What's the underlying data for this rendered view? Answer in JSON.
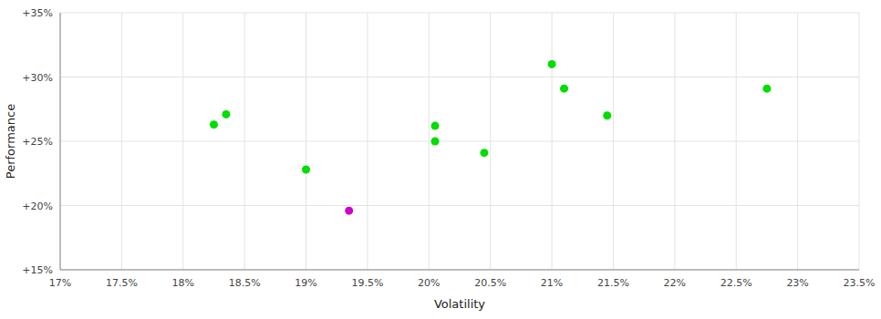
{
  "chart_data": {
    "type": "scatter",
    "xlabel": "Volatility",
    "ylabel": "Performance",
    "xlim": [
      0.17,
      0.235
    ],
    "ylim": [
      0.15,
      0.35
    ],
    "xticks": [
      {
        "value": 0.17,
        "label": "17%"
      },
      {
        "value": 0.175,
        "label": "17.5%"
      },
      {
        "value": 0.18,
        "label": "18%"
      },
      {
        "value": 0.185,
        "label": "18.5%"
      },
      {
        "value": 0.19,
        "label": "19%"
      },
      {
        "value": 0.195,
        "label": "19.5%"
      },
      {
        "value": 0.2,
        "label": "20%"
      },
      {
        "value": 0.205,
        "label": "20.5%"
      },
      {
        "value": 0.21,
        "label": "21%"
      },
      {
        "value": 0.215,
        "label": "21.5%"
      },
      {
        "value": 0.22,
        "label": "22%"
      },
      {
        "value": 0.225,
        "label": "22.5%"
      },
      {
        "value": 0.23,
        "label": "23%"
      },
      {
        "value": 0.235,
        "label": "23.5%"
      }
    ],
    "yticks": [
      {
        "value": 0.15,
        "label": "+15%"
      },
      {
        "value": 0.2,
        "label": "+20%"
      },
      {
        "value": 0.25,
        "label": "+25%"
      },
      {
        "value": 0.3,
        "label": "+30%"
      },
      {
        "value": 0.35,
        "label": "+35%"
      }
    ],
    "grid": true,
    "series": [
      {
        "color": "#00dd00",
        "x": [
          0.1835,
          0.1825,
          0.19,
          0.2005,
          0.2005,
          0.2045,
          0.21,
          0.211,
          0.2145,
          0.2275
        ],
        "values": [
          0.271,
          0.263,
          0.228,
          0.262,
          0.25,
          0.241,
          0.31,
          0.291,
          0.27,
          0.291
        ]
      },
      {
        "color": "#cc00cc",
        "x": [
          0.1935
        ],
        "values": [
          0.196
        ]
      }
    ]
  }
}
